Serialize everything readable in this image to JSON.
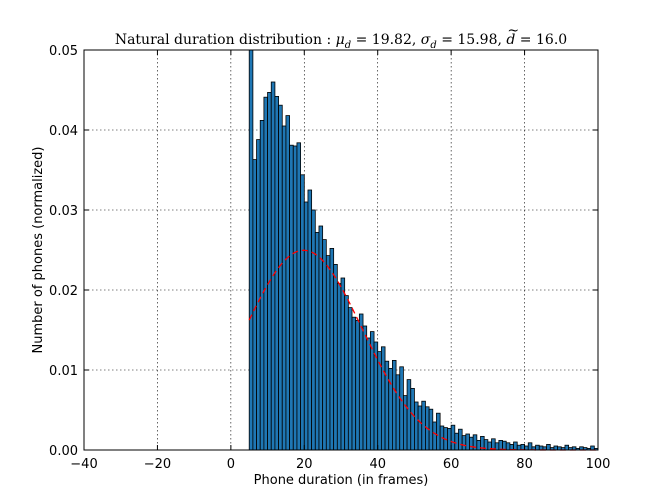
{
  "chart_data": {
    "type": "bar",
    "title": "Natural duration distribution : μd = 19.82, σd = 15.98, d̃ = 16.0",
    "title_parts": {
      "prefix": "Natural duration distribution : ",
      "mu_symbol": "μ",
      "mu_sub": "d",
      "mu_value": "19.82",
      "sigma_symbol": "σ",
      "sigma_sub": "d",
      "sigma_value": "15.98",
      "median_symbol": "d",
      "median_value": "16.0"
    },
    "xlabel": "Phone duration (in frames)",
    "ylabel": "Number of phones (normalized)",
    "xlim": [
      -40,
      100
    ],
    "ylim": [
      0,
      0.05
    ],
    "xticks": [
      -40,
      -20,
      0,
      20,
      40,
      60,
      80,
      100
    ],
    "xtick_labels": [
      "−40",
      "−20",
      "0",
      "20",
      "40",
      "60",
      "80",
      "100"
    ],
    "yticks": [
      0,
      0.01,
      0.02,
      0.03,
      0.04,
      0.05
    ],
    "ytick_labels": [
      "0.00",
      "0.01",
      "0.02",
      "0.03",
      "0.04",
      "0.05"
    ],
    "grid": true,
    "bar_color": "#1f77b4",
    "bar_edge_color": "#000000",
    "bin_width": 1,
    "bins_start": 5,
    "values": [
      0.05,
      0.0363,
      0.0388,
      0.0412,
      0.0441,
      0.0447,
      0.046,
      0.0442,
      0.0431,
      0.0405,
      0.0418,
      0.0381,
      0.038,
      0.0384,
      0.0344,
      0.031,
      0.0325,
      0.03,
      0.0272,
      0.028,
      0.0263,
      0.0243,
      0.0252,
      0.0232,
      0.0208,
      0.0215,
      0.0193,
      0.0178,
      0.0166,
      0.0162,
      0.017,
      0.0155,
      0.014,
      0.0148,
      0.0135,
      0.0123,
      0.0129,
      0.0111,
      0.0102,
      0.0112,
      0.0094,
      0.0104,
      0.0068,
      0.0088,
      0.0077,
      0.006,
      0.0055,
      0.0061,
      0.0054,
      0.0051,
      0.0035,
      0.0046,
      0.003,
      0.0028,
      0.0027,
      0.0031,
      0.0021,
      0.0026,
      0.0018,
      0.002,
      0.0016,
      0.0019,
      0.0012,
      0.0017,
      0.0013,
      0.001,
      0.0014,
      0.0009,
      0.0012,
      0.0011,
      0.0009,
      0.0007,
      0.001,
      0.0006,
      0.0007,
      0.0005,
      0.0009,
      0.0004,
      0.0006,
      0.0005,
      0.0004,
      0.0007,
      0.0003,
      0.0005,
      0.0004,
      0.0003,
      0.0006,
      0.0003,
      0.0004,
      0.0002,
      0.0004,
      0.0003,
      0.0002,
      0.0005,
      0.0002
    ],
    "overlay_curve": {
      "style": "dashed",
      "color": "#ff0000",
      "mean": 19.82,
      "std": 15.98,
      "x_range": [
        5,
        100
      ]
    }
  }
}
